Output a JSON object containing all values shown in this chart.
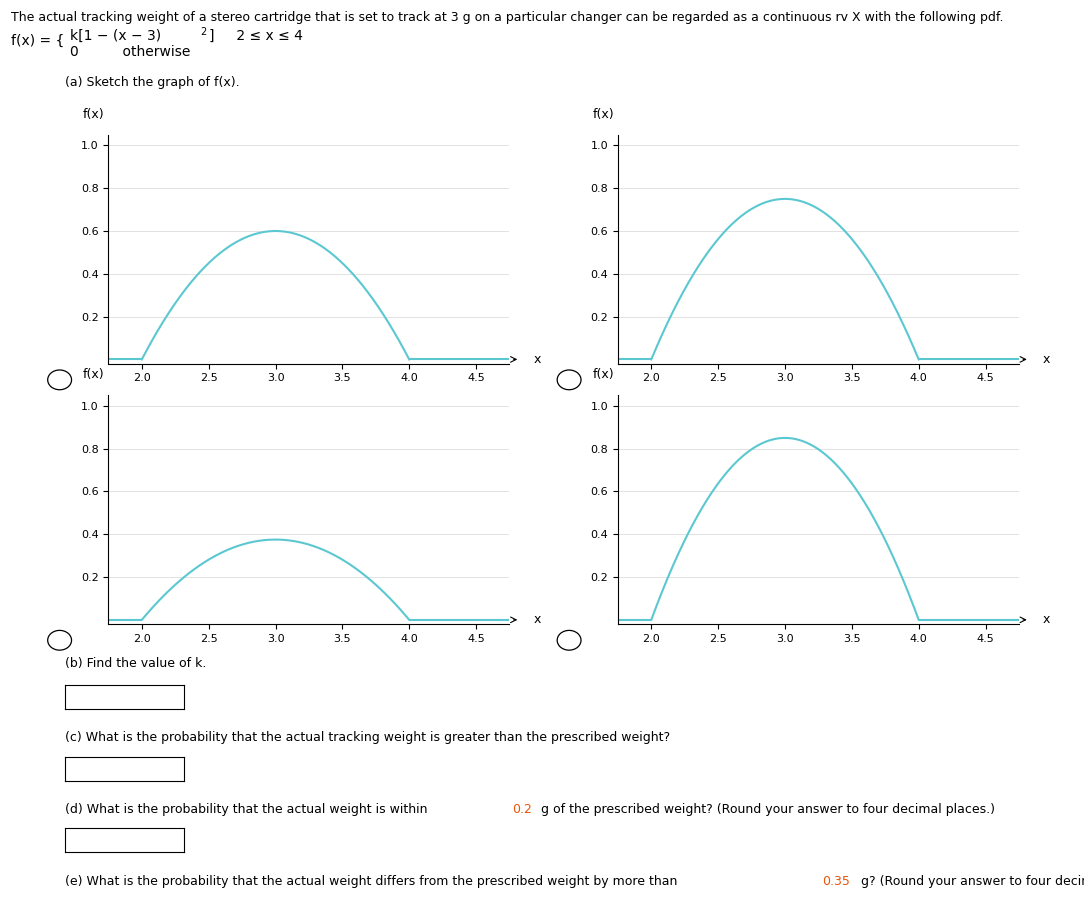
{
  "title_text": "The actual tracking weight of a stereo cartridge that is set to track at 3 g on a particular changer can be regarded as a continuous rv X with the following pdf.",
  "sketch_label": "(a) Sketch the graph of f(x).",
  "k_values": [
    0.6,
    0.75,
    0.375,
    0.85
  ],
  "curve_color": "#5bc8d1",
  "x_min": 1.75,
  "x_max": 4.75,
  "y_min": -0.02,
  "y_max": 1.05,
  "x_ticks": [
    2.0,
    2.5,
    3.0,
    3.5,
    4.0,
    4.5
  ],
  "y_ticks": [
    0.2,
    0.4,
    0.6,
    0.8,
    1.0
  ],
  "x_label": "x",
  "y_label": "f(x)",
  "part_b_label": "(b) Find the value of k.",
  "part_c_label": "(c) What is the probability that the actual tracking weight is greater than the prescribed weight?",
  "highlight_color": "#e8550a",
  "text_color": "#000000",
  "bg_color": "#ffffff",
  "font_size_title": 9,
  "font_size_axis": 9,
  "font_size_tick": 8,
  "font_size_label": 9
}
